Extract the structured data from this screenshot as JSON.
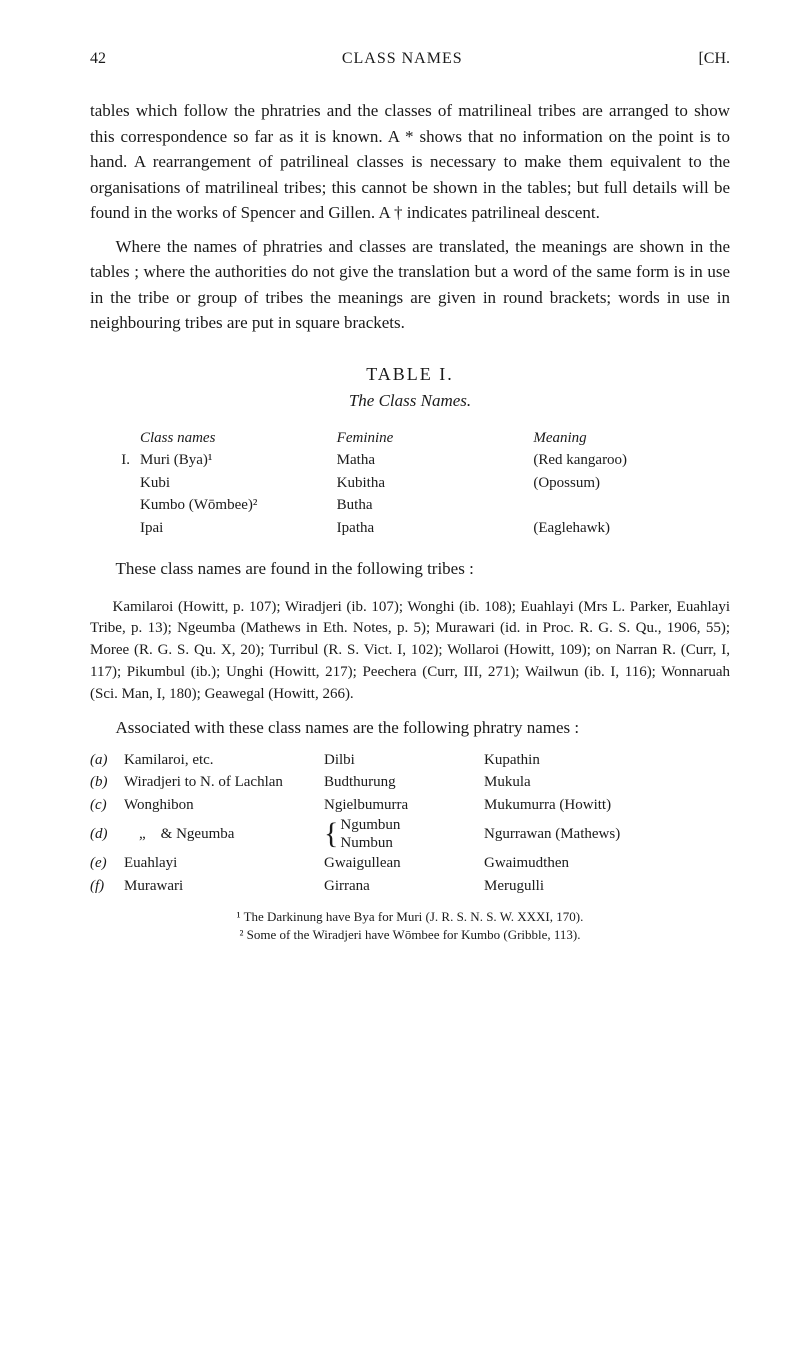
{
  "header": {
    "page_number": "42",
    "running_title": "CLASS NAMES",
    "chap_mark": "[CH."
  },
  "paras": {
    "p1a": "tables which follow the phratries and the classes of matrilineal tribes are arranged to show this correspondence so far as it is known.   A * shows that no information on the point is to hand. A rearrangement of patrilineal classes is necessary to make them equivalent to the organisations of matrilineal tribes; this cannot be shown in the tables; but full details will be found in the works of Spencer and Gillen.   A † indicates patrilineal descent.",
    "p2": "Where the names of phratries and classes are translated, the meanings are shown in the tables ; where the authorities do not give the translation but a word of the same form is in use in the tribe or group of tribes the meanings are given in round brackets; words in use in neighbouring tribes are put in square brackets."
  },
  "table": {
    "title": "TABLE  I.",
    "subtitle": "The Class Names.",
    "headers": {
      "a": "Class names",
      "b": "Feminine",
      "c": "Meaning"
    },
    "num": "I.",
    "rows": [
      {
        "a": "Muri (Bya)¹",
        "b": "Matha",
        "c": "(Red kangaroo)"
      },
      {
        "a": "Kubi",
        "b": "Kubitha",
        "c": "(Opossum)"
      },
      {
        "a": "Kumbo (Wōmbee)²",
        "b": "Butha",
        "c": ""
      },
      {
        "a": "Ipai",
        "b": "Ipatha",
        "c": "(Eaglehawk)"
      }
    ]
  },
  "follow": {
    "f1": "These class names are found in the following tribes :"
  },
  "small": {
    "s1": "Kamilaroi (Howitt, p. 107); Wiradjeri (ib. 107); Wonghi (ib. 108); Euahlayi (Mrs L. Parker, Euahlayi Tribe, p. 13); Ngeumba (Mathews in Eth. Notes, p. 5); Murawari (id. in Proc. R. G. S. Qu., 1906, 55); Moree (R. G. S. Qu. X, 20); Turribul (R. S. Vict. I, 102); Wollaroi (Howitt, 109); on Narran R. (Curr, I, 117); Pikumbul (ib.); Unghi (Howitt, 217); Peechera (Curr, III, 271); Wailwun (ib. I, 116); Wonnaruah (Sci. Man, I, 180); Geawegal (Howitt, 266)."
  },
  "assoc_intro": "Associated with these class names are the following phratry names :",
  "assoc": {
    "rows": [
      {
        "tag": "(a)",
        "b": "Kamilaroi, etc.",
        "c": "Dilbi",
        "d": "Kupathin"
      },
      {
        "tag": "(b)",
        "b": "Wiradjeri to N. of Lachlan",
        "c": "Budthurung",
        "d": "Mukula"
      },
      {
        "tag": "(c)",
        "b": "Wonghibon",
        "c": "Ngielbumurra",
        "d": "Mukumurra (Howitt)"
      },
      {
        "tag": "(d)",
        "b": "    „    & Ngeumba",
        "c1": "Ngumbun",
        "c2": "Numbun",
        "d": "Ngurrawan (Mathews)"
      },
      {
        "tag": "(e)",
        "b": "Euahlayi",
        "c": "Gwaigullean",
        "d": "Gwaimudthen"
      },
      {
        "tag": "(f)",
        "b": "Murawari",
        "c": "Girrana",
        "d": "Merugulli"
      }
    ]
  },
  "footnotes": {
    "fn1": "¹ The Darkinung have Bya for Muri (J. R. S. N. S. W. XXXI, 170).",
    "fn2": "² Some of the Wiradjeri have Wōmbee for Kumbo (Gribble, 113)."
  }
}
